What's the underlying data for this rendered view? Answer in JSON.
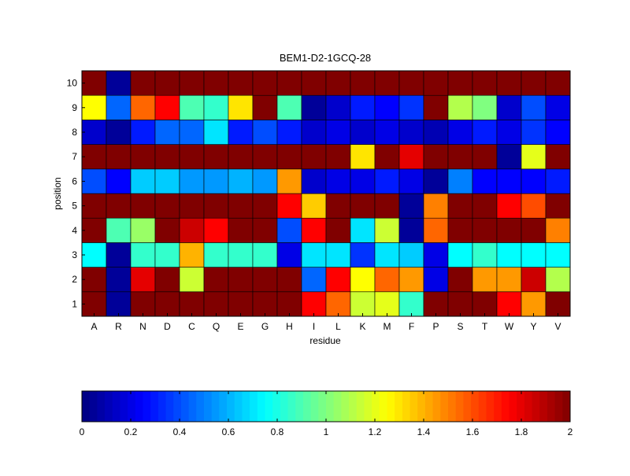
{
  "chart_data": {
    "type": "heatmap",
    "title": "BEM1-D2-1GCQ-28",
    "xlabel": "residue",
    "ylabel": "position",
    "x_categories": [
      "A",
      "R",
      "N",
      "D",
      "C",
      "Q",
      "E",
      "G",
      "H",
      "I",
      "L",
      "K",
      "M",
      "F",
      "P",
      "S",
      "T",
      "W",
      "Y",
      "V"
    ],
    "y_categories": [
      "1",
      "2",
      "3",
      "4",
      "5",
      "6",
      "7",
      "8",
      "9",
      "10"
    ],
    "rows": [
      [
        2.0,
        0.05,
        2.0,
        2.0,
        2.0,
        2.0,
        2.0,
        2.0,
        2.0,
        1.75,
        1.55,
        1.15,
        1.2,
        0.85,
        2.0,
        2.0,
        2.0,
        1.75,
        1.45,
        2.0
      ],
      [
        2.0,
        0.05,
        1.8,
        2.0,
        1.15,
        2.0,
        2.0,
        2.0,
        2.0,
        0.45,
        1.75,
        1.25,
        1.55,
        1.45,
        0.2,
        2.0,
        1.45,
        1.45,
        1.85,
        1.1
      ],
      [
        0.75,
        0.05,
        0.85,
        0.85,
        1.4,
        0.85,
        0.85,
        0.85,
        0.2,
        0.7,
        0.7,
        0.35,
        0.7,
        0.65,
        0.2,
        0.75,
        0.85,
        0.75,
        0.75,
        0.75
      ],
      [
        2.0,
        0.9,
        1.05,
        2.0,
        1.85,
        1.75,
        2.0,
        2.0,
        0.4,
        1.75,
        2.0,
        0.7,
        1.15,
        0.05,
        1.55,
        2.0,
        2.0,
        2.0,
        2.0,
        1.5
      ],
      [
        2.0,
        2.0,
        2.0,
        2.0,
        2.0,
        2.0,
        2.0,
        2.0,
        1.75,
        1.35,
        2.0,
        2.0,
        2.0,
        0.05,
        1.5,
        2.0,
        2.0,
        1.75,
        1.6,
        2.0
      ],
      [
        0.4,
        0.25,
        0.65,
        0.65,
        0.55,
        0.55,
        0.6,
        0.55,
        1.45,
        0.15,
        0.2,
        0.2,
        0.3,
        0.2,
        0.05,
        0.5,
        0.25,
        0.25,
        0.25,
        0.3
      ],
      [
        2.0,
        2.0,
        2.0,
        2.0,
        2.0,
        2.0,
        2.0,
        2.0,
        2.0,
        2.0,
        2.0,
        1.3,
        2.0,
        1.8,
        2.0,
        2.0,
        2.0,
        0.05,
        1.2,
        2.0
      ],
      [
        0.15,
        0.05,
        0.3,
        0.45,
        0.45,
        0.7,
        0.3,
        0.4,
        0.3,
        0.15,
        0.2,
        0.15,
        0.2,
        0.15,
        0.1,
        0.2,
        0.3,
        0.2,
        0.35,
        0.25
      ],
      [
        1.25,
        0.45,
        1.55,
        1.75,
        0.9,
        0.85,
        1.3,
        2.0,
        0.9,
        0.05,
        0.15,
        0.3,
        0.25,
        0.35,
        2.0,
        1.1,
        1.0,
        0.15,
        0.4,
        0.2
      ],
      [
        2.0,
        0.05,
        2.0,
        2.0,
        2.0,
        2.0,
        2.0,
        2.0,
        2.0,
        2.0,
        2.0,
        2.0,
        2.0,
        2.0,
        2.0,
        2.0,
        2.0,
        2.0,
        2.0,
        2.0
      ]
    ],
    "colormap": "jet",
    "clim": [
      0,
      2
    ],
    "grid": true,
    "colorbar": {
      "orientation": "horizontal",
      "placement": "bottom",
      "ticks": [
        0,
        0.2,
        0.4,
        0.6,
        0.8,
        1,
        1.2,
        1.4,
        1.6,
        1.8,
        2
      ],
      "tick_labels": [
        "0",
        "0.2",
        "0.4",
        "0.6",
        "0.8",
        "1",
        "1.2",
        "1.4",
        "1.6",
        "1.8",
        "2"
      ]
    }
  }
}
